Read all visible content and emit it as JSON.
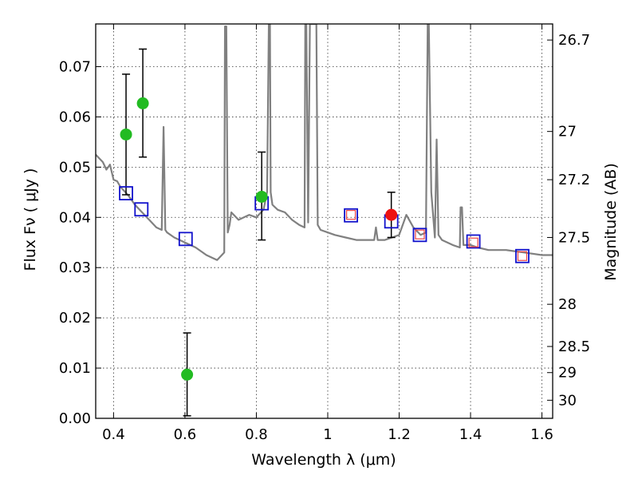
{
  "chart_data": {
    "type": "scatter",
    "xlabel": "Wavelength  λ (μm)",
    "ylabel": "Flux  Fν  ( μJy )",
    "ylabel_right": "Magnitude (AB)",
    "xlim": [
      0.35,
      1.63
    ],
    "ylim": [
      0.0,
      0.0785
    ],
    "x_ticks": [
      0.4,
      0.6,
      0.8,
      1.0,
      1.2,
      1.4,
      1.6
    ],
    "x_tick_labels": [
      "0.4",
      "0.6",
      "0.8",
      "1",
      "1.2",
      "1.4",
      "1.6"
    ],
    "y_ticks": [
      0.0,
      0.01,
      0.02,
      0.03,
      0.04,
      0.05,
      0.06,
      0.07
    ],
    "y_tick_labels": [
      "0.00",
      "0.01",
      "0.02",
      "0.03",
      "0.04",
      "0.05",
      "0.06",
      "0.07"
    ],
    "right_ticks": [
      {
        "label": "26.7",
        "flux": 0.0753
      },
      {
        "label": "27",
        "flux": 0.0571
      },
      {
        "label": "27.2",
        "flux": 0.0475
      },
      {
        "label": "27.5",
        "flux": 0.036
      },
      {
        "label": "28",
        "flux": 0.0227
      },
      {
        "label": "28.5",
        "flux": 0.0143
      },
      {
        "label": "29",
        "flux": 0.0091
      },
      {
        "label": "30",
        "flux": 0.0036
      }
    ],
    "grid": true,
    "colors": {
      "sed_line": "#808080",
      "green_points": "#22bb22",
      "red_point": "#ee1111",
      "blue_squares": "#1111cc",
      "red_squares": "#ee4444",
      "errorbars": "#000000"
    },
    "sed_model": {
      "x": [
        0.35,
        0.37,
        0.38,
        0.39,
        0.4,
        0.41,
        0.42,
        0.44,
        0.46,
        0.48,
        0.5,
        0.52,
        0.535,
        0.54,
        0.545,
        0.55,
        0.57,
        0.6,
        0.63,
        0.66,
        0.69,
        0.71,
        0.712,
        0.716,
        0.72,
        0.725,
        0.73,
        0.75,
        0.78,
        0.8,
        0.82,
        0.83,
        0.835,
        0.838,
        0.84,
        0.845,
        0.86,
        0.88,
        0.9,
        0.92,
        0.935,
        0.937,
        0.94,
        0.945,
        0.95,
        0.955,
        0.958,
        0.962,
        0.965,
        0.968,
        0.972,
        0.98,
        1.0,
        1.02,
        1.05,
        1.08,
        1.1,
        1.13,
        1.135,
        1.14,
        1.16,
        1.18,
        1.2,
        1.22,
        1.24,
        1.26,
        1.275,
        1.28,
        1.283,
        1.29,
        1.3,
        1.305,
        1.31,
        1.32,
        1.35,
        1.37,
        1.372,
        1.376,
        1.38,
        1.4,
        1.42,
        1.45,
        1.5,
        1.55,
        1.6,
        1.63
      ],
      "y": [
        0.0525,
        0.051,
        0.0495,
        0.0505,
        0.0475,
        0.0472,
        0.046,
        0.0445,
        0.0425,
        0.041,
        0.0395,
        0.038,
        0.0375,
        0.058,
        0.0375,
        0.037,
        0.036,
        0.035,
        0.034,
        0.0325,
        0.0315,
        0.033,
        0.078,
        0.078,
        0.037,
        0.0385,
        0.041,
        0.0395,
        0.0405,
        0.04,
        0.0415,
        0.045,
        0.0785,
        0.0785,
        0.045,
        0.0425,
        0.0415,
        0.041,
        0.0395,
        0.0385,
        0.038,
        0.0785,
        0.0785,
        0.039,
        0.0785,
        0.0785,
        0.0785,
        0.0785,
        0.0785,
        0.0785,
        0.0385,
        0.0375,
        0.037,
        0.0365,
        0.036,
        0.0355,
        0.0355,
        0.0355,
        0.038,
        0.0355,
        0.0355,
        0.036,
        0.0365,
        0.0405,
        0.038,
        0.0365,
        0.037,
        0.0785,
        0.0785,
        0.045,
        0.036,
        0.0555,
        0.0365,
        0.0355,
        0.0345,
        0.034,
        0.042,
        0.042,
        0.0345,
        0.0345,
        0.034,
        0.0335,
        0.0335,
        0.033,
        0.0325,
        0.0325
      ]
    },
    "photometry_green": [
      {
        "x": 0.435,
        "y": 0.0565,
        "err_lo": 0.0445,
        "err_hi": 0.0685
      },
      {
        "x": 0.482,
        "y": 0.0627,
        "err_lo": 0.052,
        "err_hi": 0.0735
      },
      {
        "x": 0.606,
        "y": 0.0087,
        "err_lo": 0.0005,
        "err_hi": 0.017
      },
      {
        "x": 0.815,
        "y": 0.0441,
        "err_lo": 0.0355,
        "err_hi": 0.053
      }
    ],
    "photometry_red": [
      {
        "x": 1.178,
        "y": 0.0405,
        "err_lo": 0.036,
        "err_hi": 0.045
      }
    ],
    "model_blue_squares": [
      {
        "x": 0.435,
        "y": 0.0448
      },
      {
        "x": 0.478,
        "y": 0.0416
      },
      {
        "x": 0.602,
        "y": 0.0357
      },
      {
        "x": 0.815,
        "y": 0.0428
      },
      {
        "x": 1.065,
        "y": 0.0404
      },
      {
        "x": 1.178,
        "y": 0.0392
      },
      {
        "x": 1.258,
        "y": 0.0365
      },
      {
        "x": 1.408,
        "y": 0.0352
      },
      {
        "x": 1.545,
        "y": 0.0323
      }
    ],
    "model_red_squares": [
      {
        "x": 1.065,
        "y": 0.0405
      },
      {
        "x": 1.258,
        "y": 0.0366
      },
      {
        "x": 1.408,
        "y": 0.035
      },
      {
        "x": 1.545,
        "y": 0.0323
      }
    ]
  }
}
